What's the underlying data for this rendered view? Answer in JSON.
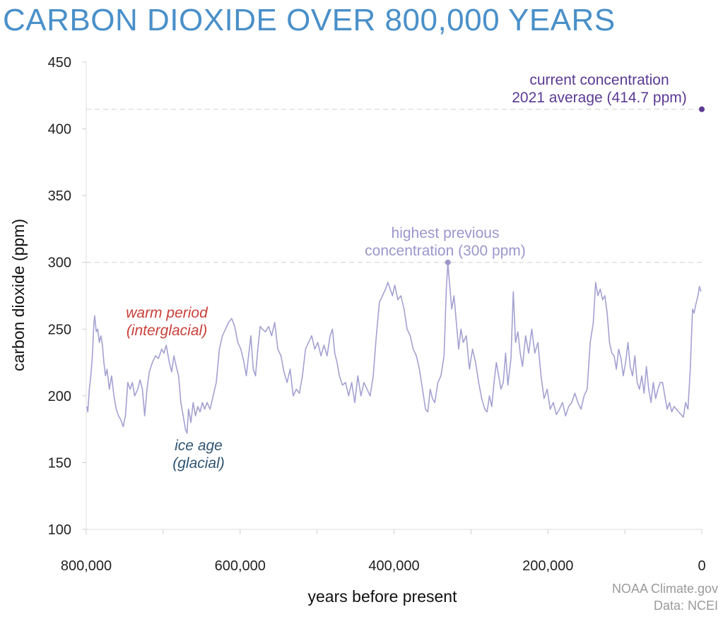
{
  "chart_data": {
    "type": "line",
    "title": "CARBON DIOXIDE OVER 800,000 YEARS",
    "xlabel": "years before present",
    "ylabel": "carbon dioxide (ppm)",
    "xlim": [
      800000,
      0
    ],
    "ylim": [
      100,
      450
    ],
    "x_ticks": [
      800000,
      700000,
      600000,
      500000,
      400000,
      300000,
      200000,
      100000,
      0
    ],
    "x_tick_labels": [
      "800,000",
      "600,000",
      "400,000",
      "200,000",
      "0"
    ],
    "y_ticks": [
      100,
      150,
      200,
      250,
      300,
      350,
      400,
      450
    ],
    "y_tick_labels": [
      "100",
      "150",
      "200",
      "250",
      "300",
      "350",
      "400",
      "450"
    ],
    "grid": false,
    "reference_lines": [
      {
        "y": 414.7,
        "style": "dashed"
      },
      {
        "y": 300,
        "style": "dashed"
      }
    ],
    "series": [
      {
        "color": "#a4a1d1",
        "points": [
          [
            799000,
            192
          ],
          [
            798000,
            188
          ],
          [
            796000,
            205
          ],
          [
            794000,
            215
          ],
          [
            792000,
            230
          ],
          [
            790000,
            255
          ],
          [
            789000,
            260
          ],
          [
            787000,
            248
          ],
          [
            785000,
            250
          ],
          [
            783000,
            240
          ],
          [
            781000,
            245
          ],
          [
            779000,
            238
          ],
          [
            777000,
            225
          ],
          [
            775000,
            215
          ],
          [
            773000,
            220
          ],
          [
            770000,
            205
          ],
          [
            767000,
            215
          ],
          [
            764000,
            200
          ],
          [
            761000,
            190
          ],
          [
            758000,
            185
          ],
          [
            755000,
            182
          ],
          [
            752000,
            177
          ],
          [
            749000,
            185
          ],
          [
            746000,
            210
          ],
          [
            743000,
            205
          ],
          [
            740000,
            210
          ],
          [
            737000,
            200
          ],
          [
            733000,
            205
          ],
          [
            730000,
            212
          ],
          [
            727000,
            205
          ],
          [
            724000,
            185
          ],
          [
            721000,
            205
          ],
          [
            718000,
            218
          ],
          [
            714000,
            225
          ],
          [
            710000,
            230
          ],
          [
            706000,
            228
          ],
          [
            702000,
            235
          ],
          [
            699000,
            232
          ],
          [
            696000,
            238
          ],
          [
            692000,
            225
          ],
          [
            689000,
            218
          ],
          [
            686000,
            230
          ],
          [
            683000,
            222
          ],
          [
            680000,
            215
          ],
          [
            677000,
            195
          ],
          [
            674000,
            185
          ],
          [
            671000,
            175
          ],
          [
            669000,
            172
          ],
          [
            667000,
            190
          ],
          [
            664000,
            180
          ],
          [
            661000,
            195
          ],
          [
            658000,
            185
          ],
          [
            655000,
            192
          ],
          [
            652000,
            188
          ],
          [
            649000,
            195
          ],
          [
            646000,
            190
          ],
          [
            643000,
            195
          ],
          [
            639000,
            190
          ],
          [
            635000,
            200
          ],
          [
            631000,
            210
          ],
          [
            627000,
            235
          ],
          [
            623000,
            245
          ],
          [
            619000,
            250
          ],
          [
            615000,
            255
          ],
          [
            611000,
            258
          ],
          [
            607000,
            252
          ],
          [
            603000,
            240
          ],
          [
            599000,
            235
          ],
          [
            595000,
            225
          ],
          [
            592000,
            215
          ],
          [
            589000,
            230
          ],
          [
            586000,
            245
          ],
          [
            583000,
            220
          ],
          [
            580000,
            215
          ],
          [
            577000,
            235
          ],
          [
            574000,
            252
          ],
          [
            571000,
            250
          ],
          [
            567000,
            248
          ],
          [
            563000,
            252
          ],
          [
            559000,
            245
          ],
          [
            555000,
            255
          ],
          [
            551000,
            235
          ],
          [
            547000,
            230
          ],
          [
            543000,
            218
          ],
          [
            539000,
            210
          ],
          [
            535000,
            220
          ],
          [
            531000,
            200
          ],
          [
            527000,
            205
          ],
          [
            523000,
            202
          ],
          [
            519000,
            215
          ],
          [
            515000,
            235
          ],
          [
            511000,
            240
          ],
          [
            507000,
            245
          ],
          [
            503000,
            235
          ],
          [
            499000,
            240
          ],
          [
            495000,
            230
          ],
          [
            491000,
            238
          ],
          [
            487000,
            230
          ],
          [
            483000,
            245
          ],
          [
            480000,
            250
          ],
          [
            477000,
            232
          ],
          [
            474000,
            225
          ],
          [
            471000,
            215
          ],
          [
            467000,
            208
          ],
          [
            463000,
            210
          ],
          [
            459000,
            200
          ],
          [
            455000,
            210
          ],
          [
            451000,
            195
          ],
          [
            447000,
            215
          ],
          [
            443000,
            200
          ],
          [
            439000,
            210
          ],
          [
            435000,
            205
          ],
          [
            431000,
            200
          ],
          [
            427000,
            215
          ],
          [
            423000,
            245
          ],
          [
            419000,
            270
          ],
          [
            415000,
            275
          ],
          [
            411000,
            280
          ],
          [
            408000,
            285
          ],
          [
            405000,
            280
          ],
          [
            402000,
            275
          ],
          [
            399000,
            283
          ],
          [
            395000,
            272
          ],
          [
            391000,
            275
          ],
          [
            387000,
            265
          ],
          [
            383000,
            250
          ],
          [
            379000,
            245
          ],
          [
            375000,
            235
          ],
          [
            371000,
            230
          ],
          [
            367000,
            220
          ],
          [
            363000,
            205
          ],
          [
            359000,
            190
          ],
          [
            356000,
            188
          ],
          [
            353000,
            205
          ],
          [
            350000,
            198
          ],
          [
            347000,
            195
          ],
          [
            343000,
            210
          ],
          [
            339000,
            215
          ],
          [
            335000,
            230
          ],
          [
            332000,
            280
          ],
          [
            330000,
            300
          ],
          [
            328000,
            285
          ],
          [
            325000,
            265
          ],
          [
            322000,
            275
          ],
          [
            319000,
            255
          ],
          [
            316000,
            235
          ],
          [
            313000,
            250
          ],
          [
            310000,
            240
          ],
          [
            306000,
            245
          ],
          [
            302000,
            220
          ],
          [
            298000,
            235
          ],
          [
            294000,
            225
          ],
          [
            290000,
            210
          ],
          [
            286000,
            198
          ],
          [
            282000,
            190
          ],
          [
            279000,
            188
          ],
          [
            276000,
            200
          ],
          [
            273000,
            192
          ],
          [
            270000,
            210
          ],
          [
            267000,
            225
          ],
          [
            264000,
            215
          ],
          [
            261000,
            205
          ],
          [
            258000,
            210
          ],
          [
            255000,
            232
          ],
          [
            252000,
            208
          ],
          [
            248000,
            228
          ],
          [
            245000,
            278
          ],
          [
            242000,
            240
          ],
          [
            239000,
            248
          ],
          [
            236000,
            232
          ],
          [
            233000,
            222
          ],
          [
            229000,
            245
          ],
          [
            225000,
            232
          ],
          [
            221000,
            250
          ],
          [
            217000,
            232
          ],
          [
            213000,
            240
          ],
          [
            209000,
            215
          ],
          [
            205000,
            198
          ],
          [
            201000,
            205
          ],
          [
            197000,
            190
          ],
          [
            193000,
            195
          ],
          [
            189000,
            186
          ],
          [
            185000,
            190
          ],
          [
            181000,
            195
          ],
          [
            177000,
            185
          ],
          [
            173000,
            192
          ],
          [
            169000,
            195
          ],
          [
            165000,
            202
          ],
          [
            161000,
            195
          ],
          [
            157000,
            190
          ],
          [
            153000,
            200
          ],
          [
            149000,
            205
          ],
          [
            145000,
            240
          ],
          [
            141000,
            255
          ],
          [
            138000,
            285
          ],
          [
            135000,
            275
          ],
          [
            132000,
            280
          ],
          [
            129000,
            272
          ],
          [
            126000,
            275
          ],
          [
            123000,
            262
          ],
          [
            120000,
            240
          ],
          [
            117000,
            232
          ],
          [
            114000,
            230
          ],
          [
            111000,
            220
          ],
          [
            108000,
            235
          ],
          [
            105000,
            228
          ],
          [
            102000,
            215
          ],
          [
            99000,
            225
          ],
          [
            96000,
            240
          ],
          [
            93000,
            222
          ],
          [
            90000,
            215
          ],
          [
            87000,
            230
          ],
          [
            84000,
            210
          ],
          [
            81000,
            205
          ],
          [
            78000,
            215
          ],
          [
            75000,
            202
          ],
          [
            72000,
            222
          ],
          [
            69000,
            205
          ],
          [
            66000,
            195
          ],
          [
            63000,
            210
          ],
          [
            60000,
            198
          ],
          [
            57000,
            205
          ],
          [
            54000,
            210
          ],
          [
            51000,
            210
          ],
          [
            48000,
            200
          ],
          [
            45000,
            190
          ],
          [
            42000,
            195
          ],
          [
            39000,
            188
          ],
          [
            36000,
            192
          ],
          [
            33000,
            190
          ],
          [
            30000,
            188
          ],
          [
            27000,
            186
          ],
          [
            24000,
            184
          ],
          [
            21000,
            195
          ],
          [
            18000,
            190
          ],
          [
            15000,
            220
          ],
          [
            12000,
            265
          ],
          [
            10000,
            262
          ],
          [
            8000,
            268
          ],
          [
            5000,
            275
          ],
          [
            3000,
            282
          ],
          [
            1000,
            278
          ]
        ]
      }
    ],
    "markers": [
      {
        "x": 330000,
        "y": 300,
        "color": "#9b96cd"
      },
      {
        "x": 0,
        "y": 414.7,
        "color": "#5b3a94"
      }
    ],
    "annotations": {
      "current_line1": "current concentration",
      "current_line2": "2021 average (414.7 ppm)",
      "highest_line1": "highest previous",
      "highest_line2": "concentration (300 ppm)",
      "warm_line1": "warm period",
      "warm_line2": "(interglacial)",
      "ice_line1": "ice age",
      "ice_line2": "(glacial)"
    },
    "credits": {
      "line1": "NOAA Climate.gov",
      "line2": "Data: NCEI"
    }
  },
  "colors": {
    "title": "#4a90c9",
    "series": "#a4a1d1",
    "current": "#5b3a94",
    "highest": "#9b96cd",
    "warm": "#c9403a",
    "ice": "#2f5473",
    "reference": "#dddddd",
    "credit": "#9a9a9a"
  }
}
